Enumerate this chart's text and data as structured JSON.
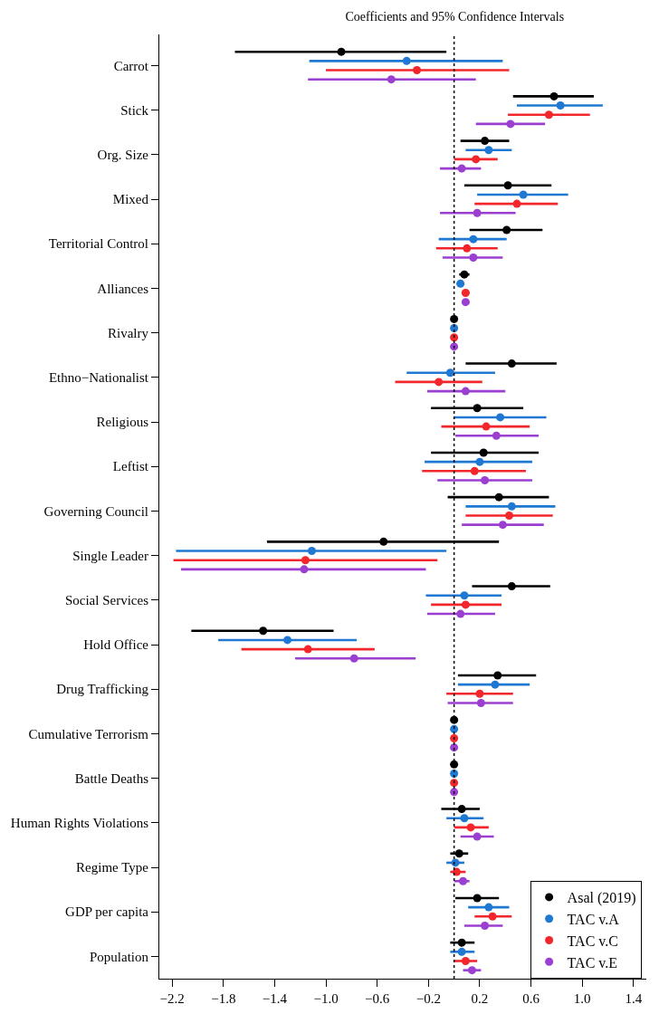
{
  "chart_data": {
    "type": "scatter",
    "orientation": "horizontal",
    "title": "Coefficients and 95% Confidence Intervals",
    "categories": [
      "Carrot",
      "Stick",
      "Org. Size",
      "Mixed",
      "Territorial Control",
      "Alliances",
      "Rivalry",
      "Ethno−Nationalist",
      "Religious",
      "Leftist",
      "Governing Council",
      "Single Leader",
      "Social Services",
      "Hold Office",
      "Drug Trafficking",
      "Cumulative Terrorism",
      "Battle Deaths",
      "Human Rights Violations",
      "Regime Type",
      "GDP per capita",
      "Population"
    ],
    "series": [
      {
        "name": "Asal (2019)",
        "color": "#000000",
        "values": [
          -0.88,
          0.78,
          0.24,
          0.42,
          0.41,
          0.08,
          0.0,
          0.45,
          0.18,
          0.23,
          0.35,
          -0.55,
          0.45,
          -1.49,
          0.34,
          0.0,
          0.0,
          0.06,
          0.04,
          0.18,
          0.06
        ],
        "errors": [
          [
            -1.71,
            -0.06
          ],
          [
            0.46,
            1.09
          ],
          [
            0.05,
            0.43
          ],
          [
            0.08,
            0.76
          ],
          [
            0.12,
            0.69
          ],
          [
            0.04,
            0.12
          ],
          null,
          [
            0.09,
            0.8
          ],
          [
            -0.18,
            0.54
          ],
          [
            -0.18,
            0.66
          ],
          [
            -0.05,
            0.74
          ],
          [
            -1.46,
            0.35
          ],
          [
            0.14,
            0.75
          ],
          [
            -2.05,
            -0.94
          ],
          [
            0.03,
            0.64
          ],
          null,
          null,
          [
            -0.1,
            0.2
          ],
          [
            -0.03,
            0.11
          ],
          [
            0.01,
            0.35
          ],
          [
            -0.03,
            0.16
          ]
        ]
      },
      {
        "name": "TAC v.A",
        "color": "#1f78d1",
        "values": [
          -0.37,
          0.83,
          0.27,
          0.54,
          0.15,
          0.05,
          0.0,
          -0.03,
          0.36,
          0.2,
          0.45,
          -1.11,
          0.08,
          -1.3,
          0.32,
          0.0,
          0.0,
          0.08,
          0.01,
          0.27,
          0.06
        ],
        "errors": [
          [
            -1.13,
            0.38
          ],
          [
            0.49,
            1.16
          ],
          [
            0.09,
            0.45
          ],
          [
            0.18,
            0.89
          ],
          [
            -0.12,
            0.41
          ],
          [
            0.02,
            0.08
          ],
          null,
          [
            -0.37,
            0.32
          ],
          [
            0.0,
            0.72
          ],
          [
            -0.23,
            0.61
          ],
          [
            0.09,
            0.79
          ],
          [
            -2.17,
            -0.06
          ],
          [
            -0.22,
            0.37
          ],
          [
            -1.84,
            -0.76
          ],
          [
            0.03,
            0.59
          ],
          null,
          null,
          [
            -0.06,
            0.23
          ],
          [
            -0.06,
            0.08
          ],
          [
            0.11,
            0.43
          ],
          [
            -0.03,
            0.16
          ]
        ]
      },
      {
        "name": "TAC v.C",
        "color": "#f2272c",
        "values": [
          -0.29,
          0.74,
          0.17,
          0.49,
          0.1,
          0.09,
          0.0,
          -0.12,
          0.25,
          0.16,
          0.43,
          -1.16,
          0.09,
          -1.14,
          0.2,
          0.0,
          0.0,
          0.13,
          0.02,
          0.3,
          0.09
        ],
        "errors": [
          [
            -1.0,
            0.43
          ],
          [
            0.42,
            1.06
          ],
          [
            0.0,
            0.34
          ],
          [
            0.16,
            0.81
          ],
          [
            -0.14,
            0.34
          ],
          [
            0.06,
            0.12
          ],
          null,
          [
            -0.46,
            0.22
          ],
          [
            -0.1,
            0.59
          ],
          [
            -0.25,
            0.56
          ],
          [
            0.09,
            0.77
          ],
          [
            -2.19,
            -0.13
          ],
          [
            -0.18,
            0.37
          ],
          [
            -1.66,
            -0.62
          ],
          [
            -0.06,
            0.46
          ],
          null,
          null,
          [
            0.0,
            0.27
          ],
          [
            -0.03,
            0.09
          ],
          [
            0.16,
            0.45
          ],
          [
            0.0,
            0.18
          ]
        ]
      },
      {
        "name": "TAC v.E",
        "color": "#9b3fd1",
        "values": [
          -0.49,
          0.44,
          0.06,
          0.18,
          0.15,
          0.09,
          0.0,
          0.09,
          0.33,
          0.24,
          0.38,
          -1.17,
          0.05,
          -0.78,
          0.21,
          0.0,
          0.0,
          0.18,
          0.07,
          0.24,
          0.14
        ],
        "errors": [
          [
            -1.14,
            0.17
          ],
          [
            0.17,
            0.71
          ],
          [
            -0.11,
            0.21
          ],
          [
            -0.11,
            0.48
          ],
          [
            -0.09,
            0.38
          ],
          [
            0.06,
            0.12
          ],
          null,
          [
            -0.21,
            0.4
          ],
          [
            0.01,
            0.66
          ],
          [
            -0.13,
            0.61
          ],
          [
            0.06,
            0.7
          ],
          [
            -2.13,
            -0.22
          ],
          [
            -0.21,
            0.32
          ],
          [
            -1.24,
            -0.3
          ],
          [
            -0.05,
            0.46
          ],
          null,
          null,
          [
            0.05,
            0.31
          ],
          [
            0.0,
            0.12
          ],
          [
            0.08,
            0.38
          ],
          [
            0.07,
            0.21
          ]
        ]
      }
    ],
    "xlim": [
      -2.3,
      1.5
    ],
    "xticks": [
      -2.2,
      -1.8,
      -1.4,
      {
        "value": -1,
        "label": "−1.0"
      },
      -0.6,
      -0.2,
      0.2,
      0.6,
      {
        "value": 1,
        "label": "1.0"
      },
      1.4
    ],
    "ref_lines": [
      {
        "axis": "x",
        "value": 0,
        "color": "#000000",
        "line_style": "dotted"
      }
    ],
    "marker": "circle",
    "legend": "bottom right"
  }
}
